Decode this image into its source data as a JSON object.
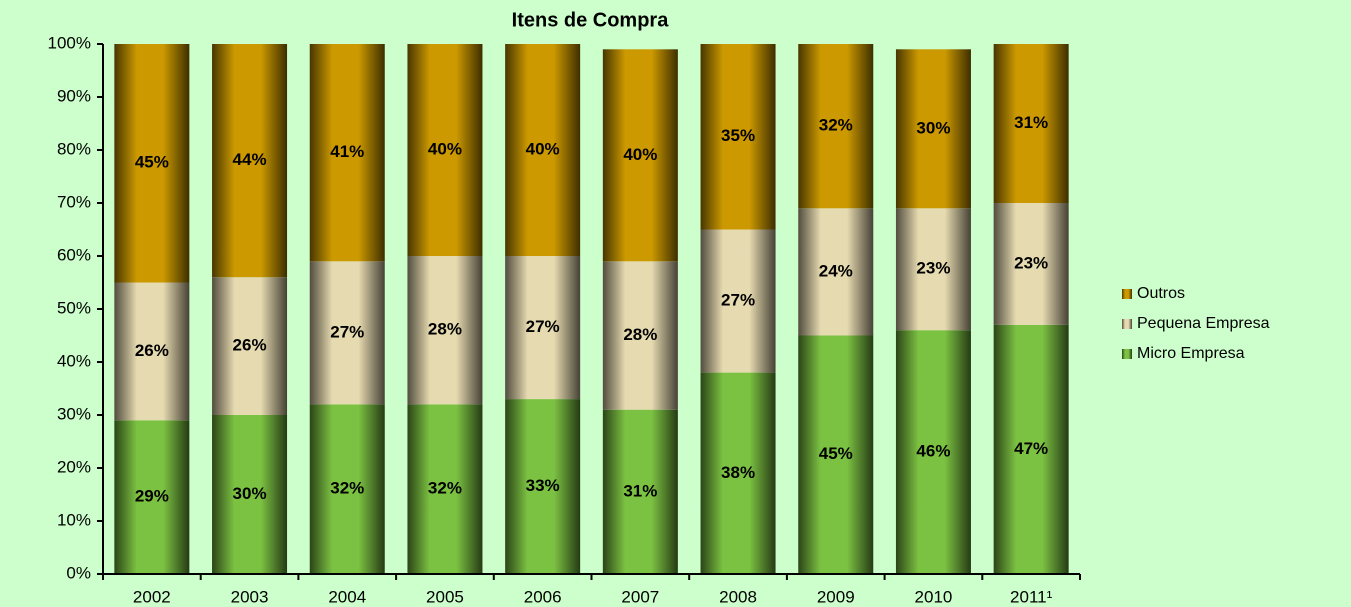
{
  "chart_data": {
    "type": "stacked-bar",
    "title": "Itens de Compra",
    "categories": [
      "2002",
      "2003",
      "2004",
      "2005",
      "2006",
      "2007",
      "2008",
      "2009",
      "2010",
      "2011¹"
    ],
    "series": [
      {
        "name": "Micro Empresa",
        "color": "#7cc242",
        "values": [
          29,
          30,
          32,
          32,
          33,
          31,
          38,
          45,
          46,
          47
        ],
        "value_labels": [
          "29%",
          "30%",
          "32%",
          "32%",
          "33%",
          "31%",
          "38%",
          "45%",
          "46%",
          "47%"
        ]
      },
      {
        "name": "Pequena Empresa",
        "color": "#e6dab0",
        "values": [
          26,
          26,
          27,
          28,
          27,
          28,
          27,
          24,
          23,
          23
        ],
        "value_labels": [
          "26%",
          "26%",
          "27%",
          "28%",
          "27%",
          "28%",
          "27%",
          "24%",
          "23%",
          "23%"
        ]
      },
      {
        "name": "Outros",
        "color": "#cc9900",
        "values": [
          45,
          44,
          41,
          40,
          40,
          40,
          35,
          32,
          30,
          31
        ],
        "value_labels": [
          "45%",
          "44%",
          "41%",
          "40%",
          "40%",
          "40%",
          "35%",
          "32%",
          "30%",
          "31%"
        ]
      }
    ],
    "ylim": [
      0,
      100
    ],
    "yticks": [
      {
        "value": 0,
        "label": "0%"
      },
      {
        "value": 10,
        "label": "10%"
      },
      {
        "value": 20,
        "label": "20%"
      },
      {
        "value": 30,
        "label": "30%"
      },
      {
        "value": 40,
        "label": "40%"
      },
      {
        "value": 50,
        "label": "50%"
      },
      {
        "value": 60,
        "label": "60%"
      },
      {
        "value": 70,
        "label": "70%"
      },
      {
        "value": 80,
        "label": "80%"
      },
      {
        "value": 90,
        "label": "90%"
      },
      {
        "value": 100,
        "label": "100%"
      }
    ],
    "legend": "right"
  }
}
